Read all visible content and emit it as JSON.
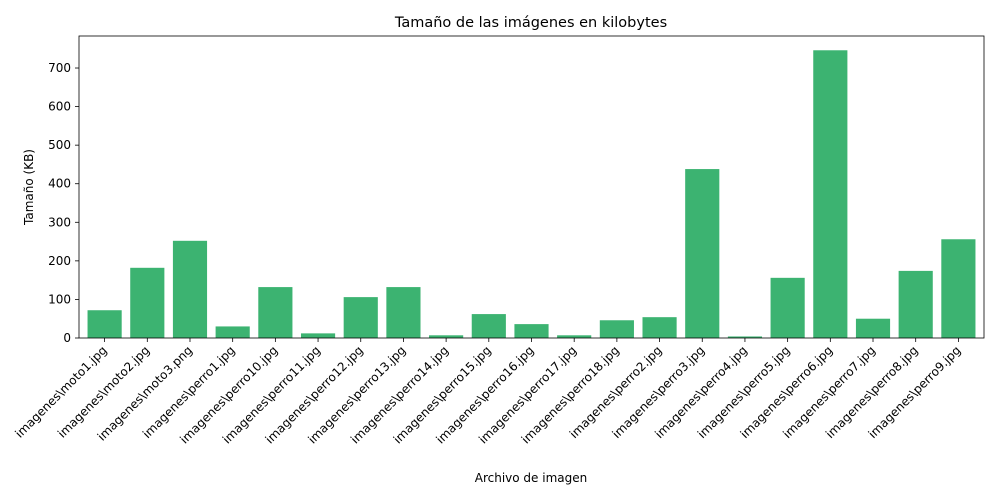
{
  "chart_data": {
    "type": "bar",
    "title": "Tamaño de las imágenes en kilobytes",
    "xlabel": "Archivo de imagen",
    "ylabel": "Tamaño (KB)",
    "ylim": [
      0,
      783
    ],
    "yticks": [
      0,
      100,
      200,
      300,
      400,
      500,
      600,
      700
    ],
    "grid": false,
    "bar_color": "#3cb371",
    "categories": [
      "imagenes\\moto1.jpg",
      "imagenes\\moto2.jpg",
      "imagenes\\moto3.png",
      "imagenes\\perro1.jpg",
      "imagenes\\perro10.jpg",
      "imagenes\\perro11.jpg",
      "imagenes\\perro12.jpg",
      "imagenes\\perro13.jpg",
      "imagenes\\perro14.jpg",
      "imagenes\\perro15.jpg",
      "imagenes\\perro16.jpg",
      "imagenes\\perro17.jpg",
      "imagenes\\perro18.jpg",
      "imagenes\\perro2.jpg",
      "imagenes\\perro3.jpg",
      "imagenes\\perro4.jpg",
      "imagenes\\perro5.jpg",
      "imagenes\\perro6.jpg",
      "imagenes\\perro7.jpg",
      "imagenes\\perro8.jpg",
      "imagenes\\perro9.jpg"
    ],
    "values": [
      72,
      182,
      252,
      30,
      132,
      12,
      106,
      132,
      7,
      62,
      36,
      7,
      46,
      54,
      438,
      4,
      156,
      746,
      50,
      174,
      256
    ]
  }
}
